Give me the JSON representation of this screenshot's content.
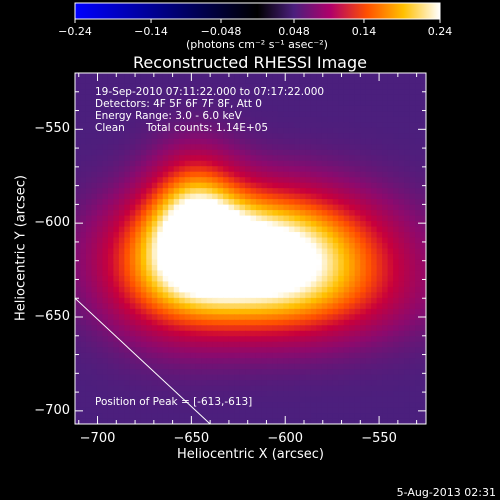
{
  "chart_data": {
    "type": "heatmap",
    "title": "Reconstructed RHESSI Image",
    "xlabel": "Heliocentric X (arcsec)",
    "ylabel": "Heliocentric Y (arcsec)",
    "xlim": [
      -712,
      -525
    ],
    "ylim": [
      -707,
      -520
    ],
    "x_ticks": [
      -700,
      -650,
      -600,
      -550
    ],
    "y_ticks": [
      -550,
      -600,
      -650,
      -700
    ],
    "x_tick_labels": [
      "−700",
      "−650",
      "−600",
      "−550"
    ],
    "y_tick_labels": [
      "−550",
      "−600",
      "−650",
      "−700"
    ],
    "colorbar": {
      "min": -0.24,
      "max": 0.24,
      "ticks": [
        -0.24,
        -0.14,
        -0.048,
        0.048,
        0.14,
        0.24
      ],
      "tick_labels": [
        "−0.24",
        "−0.14",
        "−0.048",
        "0.048",
        "0.14",
        "0.24"
      ],
      "unit_label": "(photons cm⁻² s⁻¹ asec⁻²)",
      "colors": [
        "#0000ff",
        "#000000",
        "#4b1f7d",
        "#b0006a",
        "#ff5000",
        "#ffc000",
        "#ffffff"
      ]
    },
    "sources": [
      {
        "x": -614,
        "y": -615,
        "sx": 42,
        "sy": 22,
        "amp": 0.24
      },
      {
        "x": -648,
        "y": -595,
        "sx": 16,
        "sy": 22,
        "amp": 0.12
      },
      {
        "x": -600,
        "y": -640,
        "sx": 45,
        "sy": 18,
        "amp": 0.07
      },
      {
        "x": -660,
        "y": -625,
        "sx": 25,
        "sy": 25,
        "amp": 0.07
      }
    ],
    "background": 0.03,
    "limb_line": {
      "start": [
        -712,
        -640
      ],
      "end": [
        -640,
        -707
      ]
    },
    "annotations": {
      "time_range": "19-Sep-2010 07:11:22.000 to 07:17:22.000",
      "detectors": "Detectors: 4F 5F 6F 7F 8F, Att 0",
      "energy_range": "Energy Range: 3.0 - 6.0 keV",
      "method": "Clean",
      "total_counts": "Total counts: 1.14E+05",
      "peak_position": "Position of Peak = [-613,-613]"
    }
  },
  "footer": {
    "date": "5-Aug-2013 02:31"
  }
}
